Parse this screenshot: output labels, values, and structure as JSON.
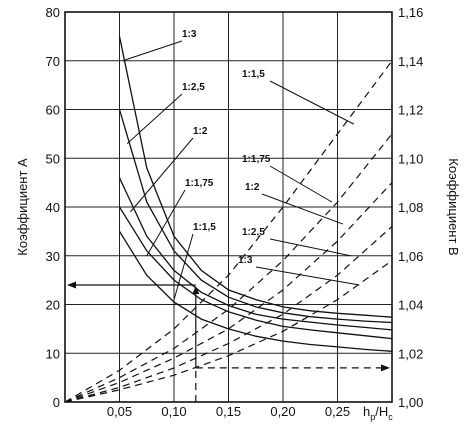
{
  "chart_data": {
    "type": "line",
    "xlabel_main": "h",
    "xlabel_sub1": "р",
    "xlabel_mid": "/H",
    "xlabel_sub2": "с",
    "ylabel_left": "Коэффициент А",
    "ylabel_right": "Коэффициент В",
    "xlim": [
      0,
      0.3
    ],
    "ylim_left": [
      0,
      80
    ],
    "ylim_right": [
      1.0,
      1.16
    ],
    "x_ticks": [
      "0,05",
      "0,10",
      "0,15",
      "0,20",
      "0,25"
    ],
    "x_tick_values": [
      0.05,
      0.1,
      0.15,
      0.2,
      0.25
    ],
    "y_left_ticks": [
      "0",
      "10",
      "20",
      "30",
      "40",
      "50",
      "60",
      "70",
      "80"
    ],
    "y_left_tick_values": [
      0,
      10,
      20,
      30,
      40,
      50,
      60,
      70,
      80
    ],
    "y_right_ticks": [
      "1,00",
      "1,02",
      "1,04",
      "1,06",
      "1,08",
      "1,10",
      "1,12",
      "1,14",
      "1,16"
    ],
    "y_right_tick_values": [
      1.0,
      1.02,
      1.04,
      1.06,
      1.08,
      1.1,
      1.12,
      1.14,
      1.16
    ],
    "series_A": [
      {
        "name": "1:3",
        "x": [
          0.05,
          0.075,
          0.1,
          0.125,
          0.15,
          0.175,
          0.2,
          0.225,
          0.25,
          0.275,
          0.3
        ],
        "y": [
          75,
          48,
          34,
          27,
          23,
          21,
          19.5,
          18.7,
          18.2,
          17.8,
          17.4
        ]
      },
      {
        "name": "1:2,5",
        "x": [
          0.05,
          0.075,
          0.1,
          0.125,
          0.15,
          0.175,
          0.2,
          0.225,
          0.25,
          0.275,
          0.3
        ],
        "y": [
          60,
          41,
          31,
          25,
          21.5,
          19.5,
          18.3,
          17.5,
          17,
          16.6,
          16.3
        ]
      },
      {
        "name": "1:2",
        "x": [
          0.05,
          0.075,
          0.1,
          0.125,
          0.15,
          0.175,
          0.2,
          0.225,
          0.25,
          0.275,
          0.3
        ],
        "y": [
          46,
          34,
          27,
          22.5,
          19.8,
          18,
          17,
          16.4,
          15.8,
          15.3,
          14.8
        ]
      },
      {
        "name": "1:1,75",
        "x": [
          0.05,
          0.075,
          0.1,
          0.125,
          0.15,
          0.175,
          0.2,
          0.225,
          0.25,
          0.275,
          0.3
        ],
        "y": [
          40,
          31,
          25,
          21,
          18.5,
          16.8,
          15.5,
          14.8,
          14.2,
          13.6,
          13
        ]
      },
      {
        "name": "1:1,5",
        "x": [
          0.05,
          0.075,
          0.1,
          0.125,
          0.15,
          0.175,
          0.2,
          0.225,
          0.25,
          0.275,
          0.3
        ],
        "y": [
          35,
          26,
          20.5,
          17,
          15,
          13.5,
          12.5,
          11.8,
          11.3,
          10.8,
          10.4
        ]
      }
    ],
    "series_B": [
      {
        "name": "1:1,5",
        "x": [
          0,
          0.05,
          0.1,
          0.15,
          0.2,
          0.25,
          0.3
        ],
        "y": [
          1.0,
          1.013,
          1.03,
          1.052,
          1.08,
          1.11,
          1.14
        ]
      },
      {
        "name": "1:1,75",
        "x": [
          0,
          0.05,
          0.1,
          0.15,
          0.2,
          0.25,
          0.3
        ],
        "y": [
          1.0,
          1.01,
          1.022,
          1.038,
          1.058,
          1.082,
          1.11
        ]
      },
      {
        "name": "1:2",
        "x": [
          0,
          0.05,
          0.1,
          0.15,
          0.2,
          0.25,
          0.3
        ],
        "y": [
          1.0,
          1.008,
          1.018,
          1.03,
          1.046,
          1.066,
          1.09
        ]
      },
      {
        "name": "1:2,5",
        "x": [
          0,
          0.05,
          0.1,
          0.15,
          0.2,
          0.25,
          0.3
        ],
        "y": [
          1.0,
          1.006,
          1.014,
          1.024,
          1.036,
          1.052,
          1.072
        ]
      },
      {
        "name": "1:3",
        "x": [
          0,
          0.05,
          0.1,
          0.15,
          0.2,
          0.25,
          0.3
        ],
        "y": [
          1.0,
          1.005,
          1.011,
          1.019,
          1.029,
          1.042,
          1.058
        ]
      }
    ],
    "labels_A": [
      "1:3",
      "1:2,5",
      "1:2",
      "1:1,75",
      "1:1,5"
    ],
    "labels_B": [
      "1:1,5",
      "1:1,75",
      "1:2",
      "1:2,5",
      "1:3"
    ],
    "example_arrows": {
      "x": 0.12,
      "A": 24,
      "B": 1.014
    }
  }
}
